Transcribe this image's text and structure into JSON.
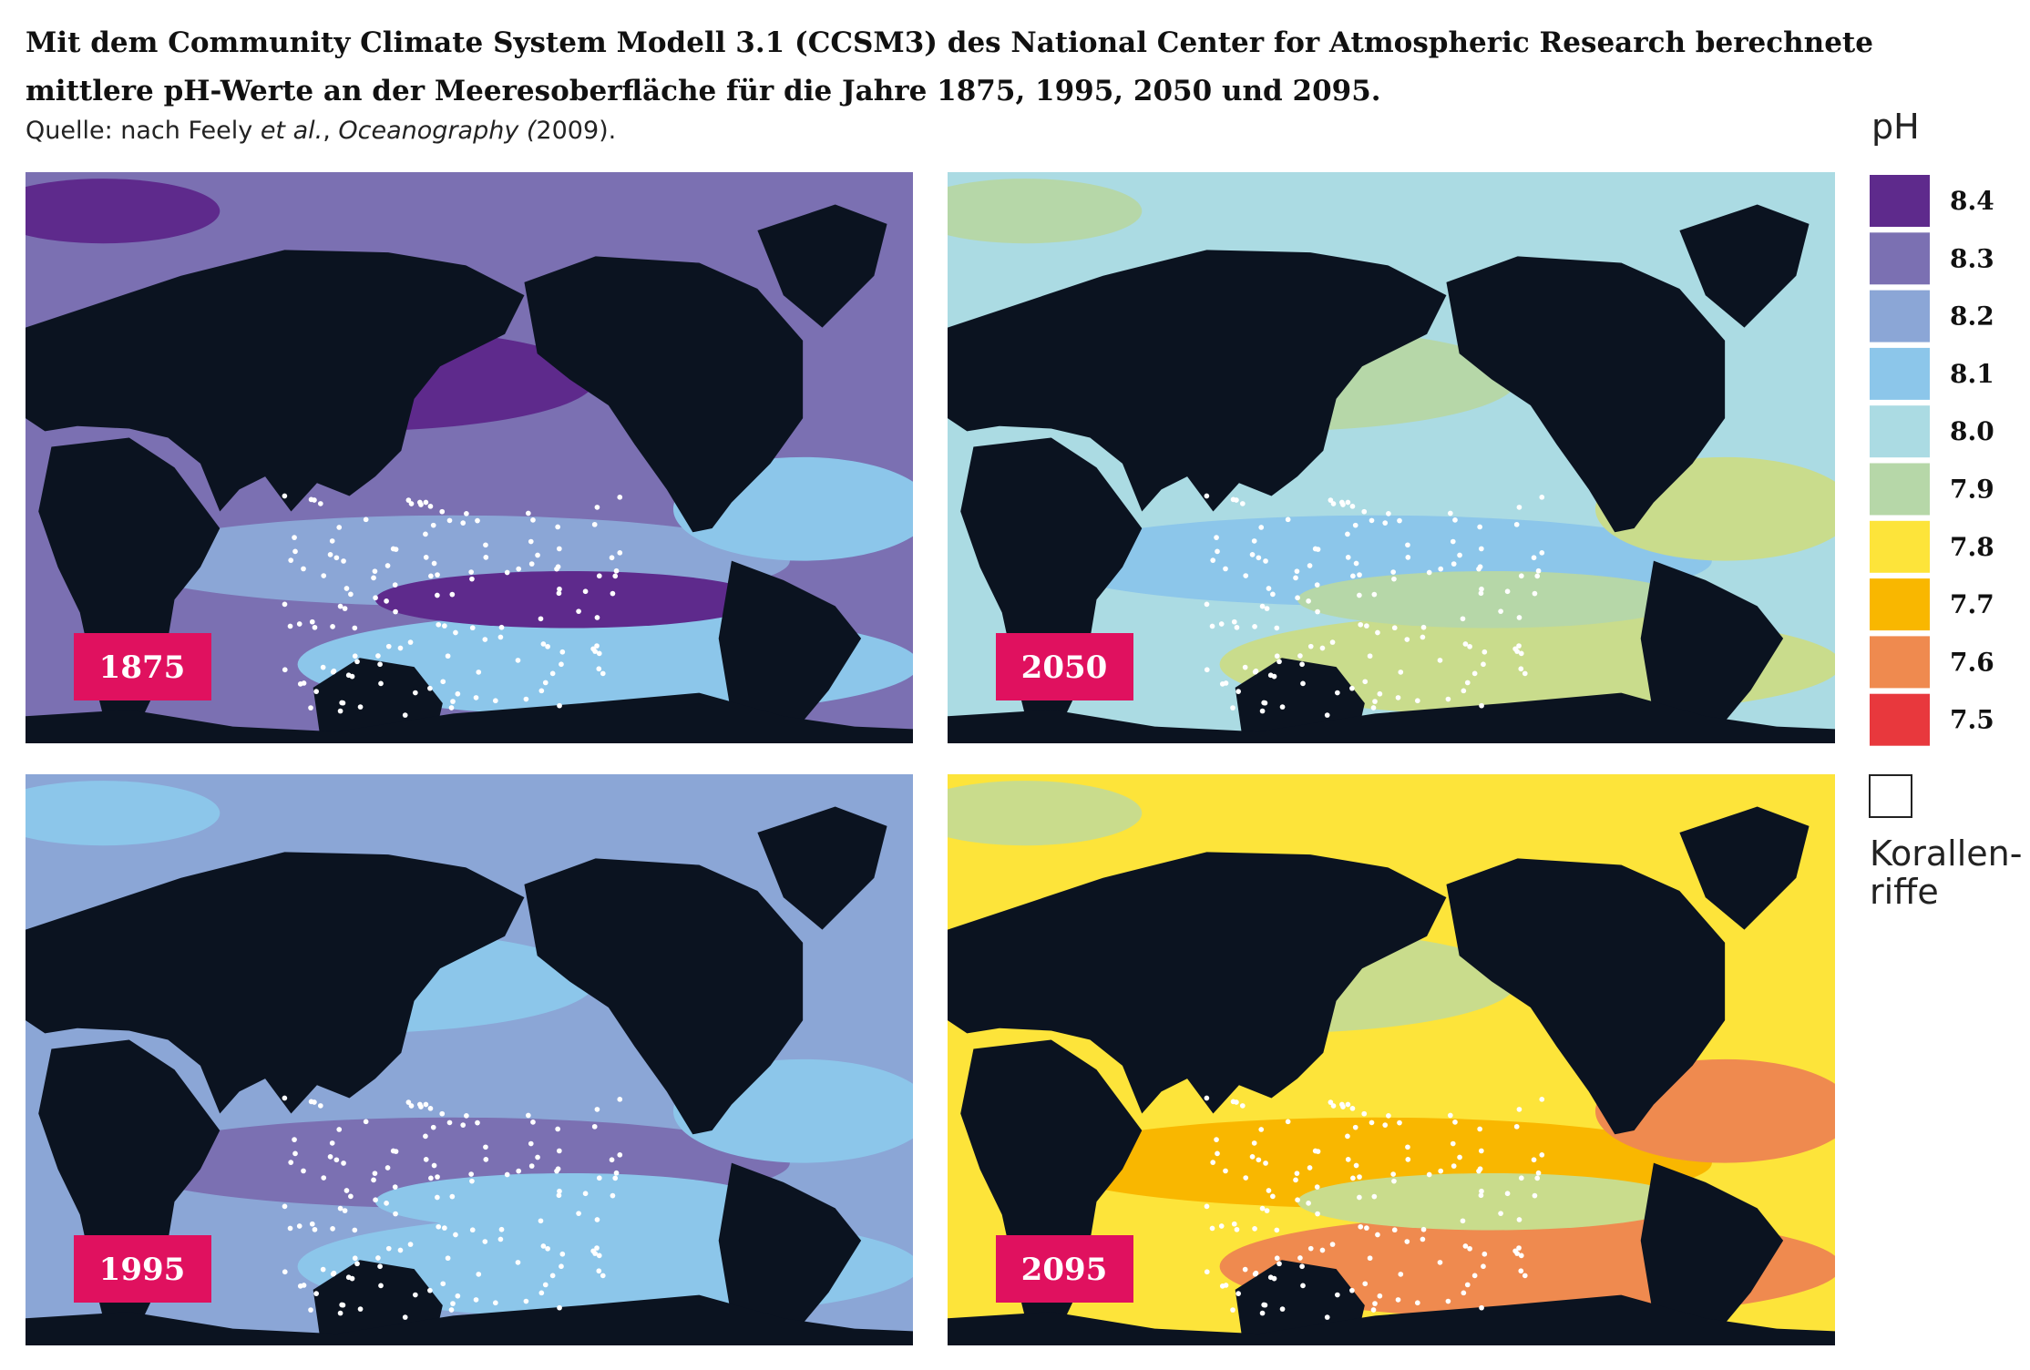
{
  "header": {
    "title_lines": [
      "Mit dem Community Climate System Modell 3.1 (CCSM3) des National Center for Atmospheric Research berechnete",
      "mittlere pH-Werte an der Meeresoberfläche für die Jahre 1875, 1995, 2050 und 2095."
    ],
    "source": {
      "prefix": "Quelle: nach Feely ",
      "italic1": "et al.",
      "mid": ", ",
      "italic2": "Oceanography (",
      "suffix": "2009)."
    }
  },
  "panels": [
    {
      "year": "1875",
      "ocean_color": "#7b70b2",
      "band_colors": [
        "#5e2a8c",
        "#8ba6d6",
        "#8cc6ea"
      ]
    },
    {
      "year": "2050",
      "ocean_color": "#abdbe3",
      "band_colors": [
        "#b6d7a8",
        "#8cc6ea",
        "#c9dc8c"
      ]
    },
    {
      "year": "1995",
      "ocean_color": "#8ba6d6",
      "band_colors": [
        "#8cc6ea",
        "#7b70b2",
        "#8cc6ea"
      ]
    },
    {
      "year": "2095",
      "ocean_color": "#fde43a",
      "band_colors": [
        "#c9dc8c",
        "#f9b700",
        "#ef8a4f"
      ]
    }
  ],
  "legend": {
    "title": "pH",
    "items": [
      {
        "label": "8.4",
        "color": "#5e2a8c"
      },
      {
        "label": "8.3",
        "color": "#7b70b2"
      },
      {
        "label": "8.2",
        "color": "#8ba6d6"
      },
      {
        "label": "8.1",
        "color": "#8cc6ea"
      },
      {
        "label": "8.0",
        "color": "#abdbe3"
      },
      {
        "label": "7.9",
        "color": "#b6d7a8"
      },
      {
        "label": "7.8",
        "color": "#fde43a"
      },
      {
        "label": "7.7",
        "color": "#f9b700"
      },
      {
        "label": "7.6",
        "color": "#ef8a4f"
      },
      {
        "label": "7.5",
        "color": "#e8383d"
      }
    ],
    "coral_lines": [
      "Korallen-",
      "riffe"
    ]
  }
}
